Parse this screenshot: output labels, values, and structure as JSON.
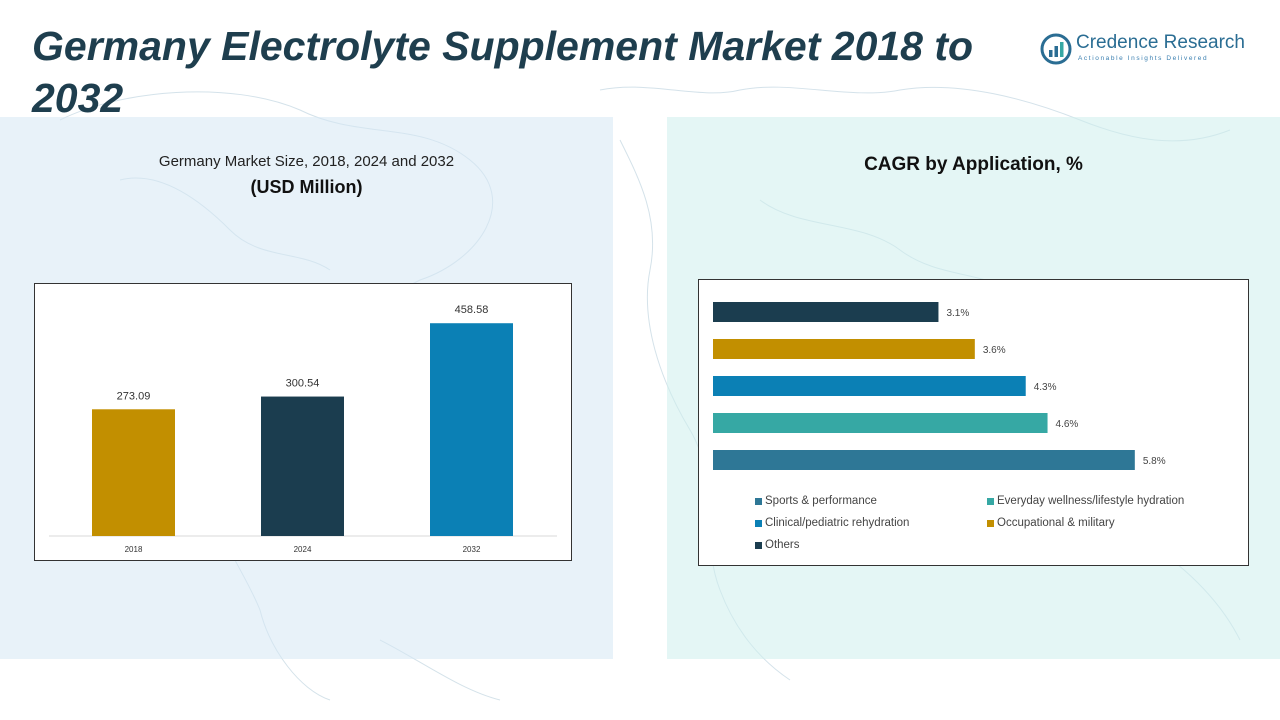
{
  "header": {
    "title": "Germany Electrolyte Supplement Market 2018 to 2032"
  },
  "logo": {
    "name": "Credence Research",
    "tagline": "Actionable Insights Delivered"
  },
  "left_panel": {
    "subtitle": "Germany Market Size, 2018, 2024 and 2032",
    "unit": "(USD Million)"
  },
  "right_panel": {
    "title": "CAGR by Application, %"
  },
  "colors": {
    "title": "#1e3e4e",
    "gold": "#c28f00",
    "navy": "#1b3d4f",
    "blue": "#0b80b5",
    "teal": "#36a8a4",
    "steel": "#2e7796"
  },
  "chart_data": [
    {
      "type": "bar",
      "title": "Germany Market Size, 2018, 2024 and 2032",
      "ylabel": "(USD Million)",
      "categories": [
        "2018",
        "2024",
        "2032"
      ],
      "values": [
        273.09,
        300.54,
        458.58
      ],
      "value_labels": [
        "273.09",
        "300.54",
        "458.58"
      ],
      "colors": [
        "#c28f00",
        "#1b3d4f",
        "#0b80b5"
      ],
      "ylim": [
        0,
        500
      ],
      "grid": false
    },
    {
      "type": "bar",
      "orientation": "horizontal",
      "title": "CAGR by Application, %",
      "categories": [
        "Sports & performance",
        "Everyday wellness/lifestyle hydration",
        "Clinical/pediatric rehydration",
        "Occupational & military",
        "Others"
      ],
      "values": [
        5.8,
        4.6,
        4.3,
        3.6,
        3.1
      ],
      "value_labels": [
        "5.8%",
        "4.6%",
        "4.3%",
        "3.6%",
        "3.1%"
      ],
      "colors": [
        "#2e7796",
        "#36a8a4",
        "#0b80b5",
        "#c28f00",
        "#1b3d4f"
      ],
      "xlim": [
        0,
        6.6
      ],
      "grid": false,
      "legend_position": "bottom"
    }
  ]
}
